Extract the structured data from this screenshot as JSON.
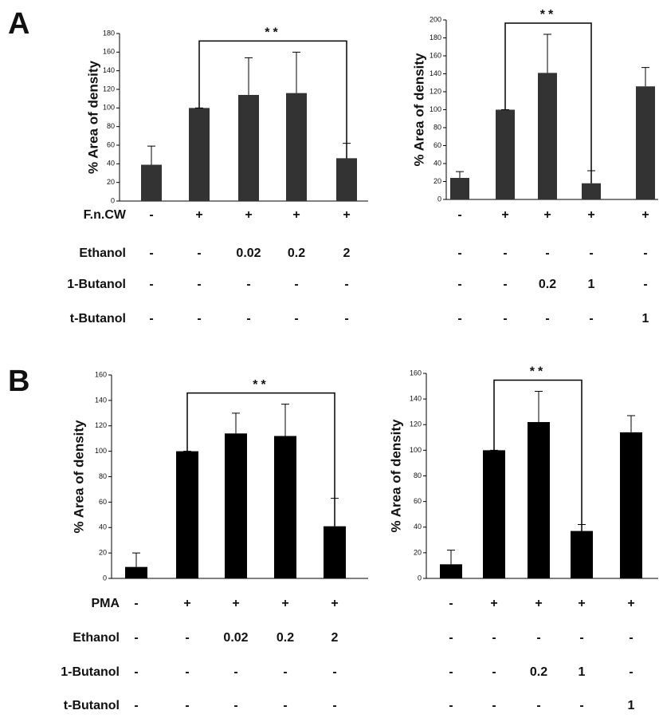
{
  "chart_data": [
    {
      "type": "bar",
      "panel": "A",
      "ylabel": "% Area of density",
      "color": "#333333",
      "categories": [
        null,
        null,
        null,
        null,
        null
      ],
      "values": [
        39,
        100,
        114,
        116,
        46
      ],
      "errors": [
        20,
        0,
        40,
        44,
        16
      ],
      "ylim": [
        0,
        180
      ],
      "yticks": [
        0,
        20,
        40,
        60,
        80,
        100,
        120,
        140,
        160,
        180
      ],
      "significance": {
        "from": 1,
        "to": 4,
        "label": "**"
      },
      "treatments": {
        "names": [
          "F.n.CW",
          "Ethanol",
          "1-Butanol",
          "t-Butanol"
        ],
        "cells": [
          [
            "-",
            "+",
            "+",
            "+",
            "+"
          ],
          [
            "-",
            "-",
            "0.02",
            "0.2",
            "2"
          ],
          [
            "-",
            "-",
            "-",
            "-",
            "-"
          ],
          [
            "-",
            "-",
            "-",
            "-",
            "-"
          ]
        ]
      }
    },
    {
      "type": "bar",
      "ylabel": "% Area of density",
      "color": "#333333",
      "categories": [
        null,
        null,
        null,
        null,
        null
      ],
      "values": [
        24,
        100,
        141,
        18,
        126
      ],
      "errors": [
        7,
        0,
        43,
        14,
        21
      ],
      "ylim": [
        0,
        200
      ],
      "yticks": [
        0,
        20,
        40,
        60,
        80,
        100,
        120,
        140,
        160,
        180,
        200
      ],
      "significance": {
        "from": 1,
        "to": 3,
        "label": "**"
      },
      "treatments": {
        "cells": [
          [
            "-",
            "+",
            "+",
            "+",
            "+"
          ],
          [
            "-",
            "-",
            "-",
            "-",
            "-"
          ],
          [
            "-",
            "-",
            "0.2",
            "1",
            "-"
          ],
          [
            "-",
            "-",
            "-",
            "-",
            "1"
          ]
        ]
      }
    },
    {
      "type": "bar",
      "panel": "B",
      "ylabel": "% Area of density",
      "color": "#000000",
      "categories": [
        null,
        null,
        null,
        null,
        null
      ],
      "values": [
        9,
        100,
        114,
        112,
        41
      ],
      "errors": [
        11,
        0,
        16,
        25,
        22
      ],
      "ylim": [
        0,
        160
      ],
      "yticks": [
        0,
        20,
        40,
        60,
        80,
        100,
        120,
        140,
        160
      ],
      "significance": {
        "from": 1,
        "to": 4,
        "label": "**"
      },
      "treatments": {
        "names": [
          "PMA",
          "Ethanol",
          "1-Butanol",
          "t-Butanol"
        ],
        "cells": [
          [
            "-",
            "+",
            "+",
            "+",
            "+"
          ],
          [
            "-",
            "-",
            "0.02",
            "0.2",
            "2"
          ],
          [
            "-",
            "-",
            "-",
            "-",
            "-"
          ],
          [
            "-",
            "-",
            "-",
            "-",
            "-"
          ]
        ]
      }
    },
    {
      "type": "bar",
      "ylabel": "% Area of density",
      "color": "#000000",
      "categories": [
        null,
        null,
        null,
        null,
        null
      ],
      "values": [
        11,
        100,
        122,
        37,
        114
      ],
      "errors": [
        11,
        0,
        24,
        5,
        13
      ],
      "ylim": [
        0,
        160
      ],
      "yticks": [
        0,
        20,
        40,
        60,
        80,
        100,
        120,
        140,
        160
      ],
      "significance": {
        "from": 1,
        "to": 3,
        "label": "**"
      },
      "treatments": {
        "cells": [
          [
            "-",
            "+",
            "+",
            "+",
            "+"
          ],
          [
            "-",
            "-",
            "-",
            "-",
            "-"
          ],
          [
            "-",
            "-",
            "0.2",
            "1",
            "-"
          ],
          [
            "-",
            "-",
            "-",
            "-",
            "1"
          ]
        ]
      }
    }
  ]
}
